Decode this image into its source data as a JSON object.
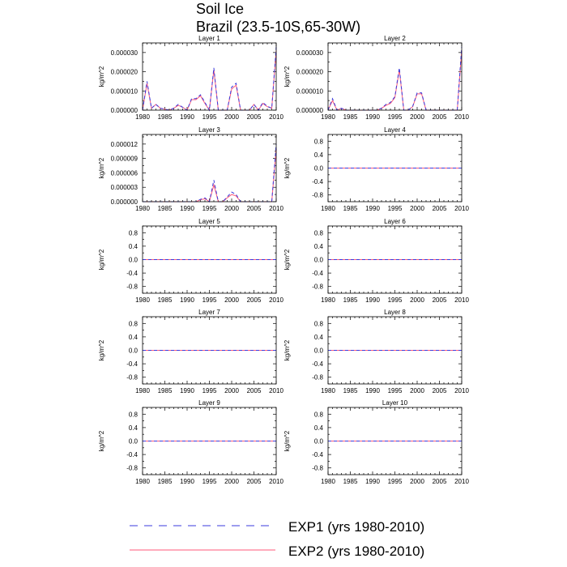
{
  "figure": {
    "title": "Soil Ice",
    "subtitle": "Brazil (23.5-10S,65-30W)"
  },
  "colors": {
    "exp1": "#3b3bdc",
    "exp2": "#ff5a7a",
    "axis": "#000000"
  },
  "legend": {
    "items": [
      {
        "label": "EXP1 (yrs 1980-2010)",
        "style": "dashed",
        "color_key": "exp1"
      },
      {
        "label": "EXP2 (yrs 1980-2010)",
        "style": "solid",
        "color_key": "exp2"
      }
    ]
  },
  "chart_data": [
    {
      "type": "line",
      "title": "Layer 1",
      "xlabel": "",
      "ylabel": "kg/m^2",
      "xlim": [
        1980,
        2010
      ],
      "ylim": [
        0,
        3.5e-05
      ],
      "xticks": [
        1980,
        1985,
        1990,
        1995,
        2000,
        2005,
        2010
      ],
      "yticks": [
        0,
        1e-05,
        2e-05,
        3e-05
      ],
      "yticklabels": [
        "0.000000",
        "0.000010",
        "0.000020",
        "0.000030"
      ],
      "x": [
        1980,
        1981,
        1982,
        1983,
        1984,
        1985,
        1986,
        1987,
        1988,
        1989,
        1990,
        1991,
        1992,
        1993,
        1994,
        1995,
        1996,
        1997,
        1998,
        1999,
        2000,
        2001,
        2002,
        2003,
        2004,
        2005,
        2006,
        2007,
        2008,
        2009,
        2010
      ],
      "series": [
        {
          "name": "EXP1",
          "values": [
            0,
            1.5e-05,
            1e-06,
            3e-06,
            1e-06,
            5e-07,
            0,
            1e-06,
            3e-06,
            1.5e-06,
            0,
            6e-06,
            6e-06,
            8e-06,
            4e-06,
            0,
            2.2e-05,
            0,
            0,
            0,
            1.2e-05,
            1.4e-05,
            0,
            0,
            0,
            3e-06,
            0,
            4e-06,
            2e-06,
            1e-06,
            3.3e-05
          ]
        },
        {
          "name": "EXP2",
          "values": [
            0,
            1.4e-05,
            1e-06,
            3e-06,
            1e-06,
            5e-07,
            0,
            1e-06,
            2.5e-06,
            1.5e-06,
            0,
            5.5e-06,
            5.5e-06,
            7.5e-06,
            3.5e-06,
            0,
            2.1e-05,
            0,
            0,
            0,
            1.1e-05,
            1.3e-05,
            0,
            0,
            0,
            3e-06,
            0,
            3.5e-06,
            1.8e-06,
            1e-06,
            3.1e-05
          ]
        }
      ]
    },
    {
      "type": "line",
      "title": "Layer 2",
      "xlabel": "",
      "ylabel": "kg/m^2",
      "xlim": [
        1980,
        2010
      ],
      "ylim": [
        0,
        3.5e-05
      ],
      "xticks": [
        1980,
        1985,
        1990,
        1995,
        2000,
        2005,
        2010
      ],
      "yticks": [
        0,
        1e-05,
        2e-05,
        3e-05
      ],
      "yticklabels": [
        "0.000000",
        "0.000010",
        "0.000020",
        "0.000030"
      ],
      "x": [
        1980,
        1981,
        1982,
        1983,
        1984,
        1985,
        1986,
        1987,
        1988,
        1989,
        1990,
        1991,
        1992,
        1993,
        1994,
        1995,
        1996,
        1997,
        1998,
        1999,
        2000,
        2001,
        2002,
        2003,
        2004,
        2005,
        2006,
        2007,
        2008,
        2009,
        2010
      ],
      "series": [
        {
          "name": "EXP1",
          "values": [
            0,
            6e-06,
            0,
            1e-06,
            0,
            0,
            0,
            0,
            0,
            0,
            0,
            0,
            1e-06,
            3e-06,
            4e-06,
            7e-06,
            2.2e-05,
            0,
            0,
            2e-06,
            9e-06,
            9e-06,
            0,
            0,
            0,
            0,
            0,
            0,
            0,
            0,
            3.3e-05
          ]
        },
        {
          "name": "EXP2",
          "values": [
            0,
            5e-06,
            0,
            1e-06,
            0,
            0,
            0,
            0,
            0,
            0,
            0,
            0,
            1e-06,
            2.5e-06,
            3.5e-06,
            6.5e-06,
            2.1e-05,
            0,
            0,
            1.8e-06,
            8.5e-06,
            8.5e-06,
            0,
            0,
            0,
            0,
            0,
            0,
            0,
            0,
            3.1e-05
          ]
        }
      ]
    },
    {
      "type": "line",
      "title": "Layer 3",
      "xlabel": "",
      "ylabel": "kg/m^2",
      "xlim": [
        1980,
        2010
      ],
      "ylim": [
        0,
        1.4e-05
      ],
      "xticks": [
        1980,
        1985,
        1990,
        1995,
        2000,
        2005,
        2010
      ],
      "yticks": [
        0,
        3e-06,
        6e-06,
        9e-06,
        1.2e-05
      ],
      "yticklabels": [
        "0.000000",
        "0.000003",
        "0.000006",
        "0.000009",
        "0.000012"
      ],
      "x": [
        1980,
        1981,
        1982,
        1983,
        1984,
        1985,
        1986,
        1987,
        1988,
        1989,
        1990,
        1991,
        1992,
        1993,
        1994,
        1995,
        1996,
        1997,
        1998,
        1999,
        2000,
        2001,
        2002,
        2003,
        2004,
        2005,
        2006,
        2007,
        2008,
        2009,
        2010
      ],
      "series": [
        {
          "name": "EXP1",
          "values": [
            0,
            0,
            0,
            0,
            0,
            0,
            0,
            0,
            0,
            0,
            0,
            0,
            0,
            5e-07,
            8e-07,
            0,
            4.5e-06,
            0,
            0,
            1e-06,
            2e-06,
            1.5e-06,
            0,
            0,
            0,
            0,
            0,
            0,
            0,
            0,
            1.2e-05
          ]
        },
        {
          "name": "EXP2",
          "values": [
            0,
            0,
            0,
            0,
            0,
            0,
            0,
            0,
            0,
            0,
            0,
            0,
            0,
            4e-07,
            6e-07,
            0,
            3.5e-06,
            0,
            0,
            8e-07,
            1.5e-06,
            1.2e-06,
            0,
            0,
            0,
            0,
            0,
            0,
            0,
            0,
            1.1e-05
          ]
        }
      ]
    },
    {
      "type": "line",
      "title": "Layer 4",
      "ylabel": "kg/m^2",
      "xlim": [
        1980,
        2010
      ],
      "ylim": [
        -1,
        1
      ],
      "xticks": [
        1980,
        1985,
        1990,
        1995,
        2000,
        2005,
        2010
      ],
      "yticks": [
        -0.8,
        -0.4,
        0,
        0.4,
        0.8
      ],
      "yticklabels": [
        "-0.8",
        "-0.4",
        "0.0",
        "0.4",
        "0.8"
      ],
      "x": [
        1980,
        2010
      ],
      "series": [
        {
          "name": "EXP1",
          "values": [
            0,
            0
          ]
        },
        {
          "name": "EXP2",
          "values": [
            0,
            0
          ]
        }
      ]
    },
    {
      "type": "line",
      "title": "Layer 5",
      "ylabel": "kg/m^2",
      "xlim": [
        1980,
        2010
      ],
      "ylim": [
        -1,
        1
      ],
      "xticks": [
        1980,
        1985,
        1990,
        1995,
        2000,
        2005,
        2010
      ],
      "yticks": [
        -0.8,
        -0.4,
        0,
        0.4,
        0.8
      ],
      "yticklabels": [
        "-0.8",
        "-0.4",
        "0.0",
        "0.4",
        "0.8"
      ],
      "x": [
        1980,
        2010
      ],
      "series": [
        {
          "name": "EXP1",
          "values": [
            0,
            0
          ]
        },
        {
          "name": "EXP2",
          "values": [
            0,
            0
          ]
        }
      ]
    },
    {
      "type": "line",
      "title": "Layer 6",
      "ylabel": "kg/m^2",
      "xlim": [
        1980,
        2010
      ],
      "ylim": [
        -1,
        1
      ],
      "xticks": [
        1980,
        1985,
        1990,
        1995,
        2000,
        2005,
        2010
      ],
      "yticks": [
        -0.8,
        -0.4,
        0,
        0.4,
        0.8
      ],
      "yticklabels": [
        "-0.8",
        "-0.4",
        "0.0",
        "0.4",
        "0.8"
      ],
      "x": [
        1980,
        2010
      ],
      "series": [
        {
          "name": "EXP1",
          "values": [
            0,
            0
          ]
        },
        {
          "name": "EXP2",
          "values": [
            0,
            0
          ]
        }
      ]
    },
    {
      "type": "line",
      "title": "Layer 7",
      "ylabel": "kg/m^2",
      "xlim": [
        1980,
        2010
      ],
      "ylim": [
        -1,
        1
      ],
      "xticks": [
        1980,
        1985,
        1990,
        1995,
        2000,
        2005,
        2010
      ],
      "yticks": [
        -0.8,
        -0.4,
        0,
        0.4,
        0.8
      ],
      "yticklabels": [
        "-0.8",
        "-0.4",
        "0.0",
        "0.4",
        "0.8"
      ],
      "x": [
        1980,
        2010
      ],
      "series": [
        {
          "name": "EXP1",
          "values": [
            0,
            0
          ]
        },
        {
          "name": "EXP2",
          "values": [
            0,
            0
          ]
        }
      ]
    },
    {
      "type": "line",
      "title": "Layer 8",
      "ylabel": "kg/m^2",
      "xlim": [
        1980,
        2010
      ],
      "ylim": [
        -1,
        1
      ],
      "xticks": [
        1980,
        1985,
        1990,
        1995,
        2000,
        2005,
        2010
      ],
      "yticks": [
        -0.8,
        -0.4,
        0,
        0.4,
        0.8
      ],
      "yticklabels": [
        "-0.8",
        "-0.4",
        "0.0",
        "0.4",
        "0.8"
      ],
      "x": [
        1980,
        2010
      ],
      "series": [
        {
          "name": "EXP1",
          "values": [
            0,
            0
          ]
        },
        {
          "name": "EXP2",
          "values": [
            0,
            0
          ]
        }
      ]
    },
    {
      "type": "line",
      "title": "Layer 9",
      "ylabel": "kg/m^2",
      "xlim": [
        1980,
        2010
      ],
      "ylim": [
        -1,
        1
      ],
      "xticks": [
        1980,
        1985,
        1990,
        1995,
        2000,
        2005,
        2010
      ],
      "yticks": [
        -0.8,
        -0.4,
        0,
        0.4,
        0.8
      ],
      "yticklabels": [
        "-0.8",
        "-0.4",
        "0.0",
        "0.4",
        "0.8"
      ],
      "x": [
        1980,
        2010
      ],
      "series": [
        {
          "name": "EXP1",
          "values": [
            0,
            0
          ]
        },
        {
          "name": "EXP2",
          "values": [
            0,
            0
          ]
        }
      ]
    },
    {
      "type": "line",
      "title": "Layer 10",
      "ylabel": "kg/m^2",
      "xlim": [
        1980,
        2010
      ],
      "ylim": [
        -1,
        1
      ],
      "xticks": [
        1980,
        1985,
        1990,
        1995,
        2000,
        2005,
        2010
      ],
      "yticks": [
        -0.8,
        -0.4,
        0,
        0.4,
        0.8
      ],
      "yticklabels": [
        "-0.8",
        "-0.4",
        "0.0",
        "0.4",
        "0.8"
      ],
      "x": [
        1980,
        2010
      ],
      "series": [
        {
          "name": "EXP1",
          "values": [
            0,
            0
          ]
        },
        {
          "name": "EXP2",
          "values": [
            0,
            0
          ]
        }
      ]
    }
  ]
}
